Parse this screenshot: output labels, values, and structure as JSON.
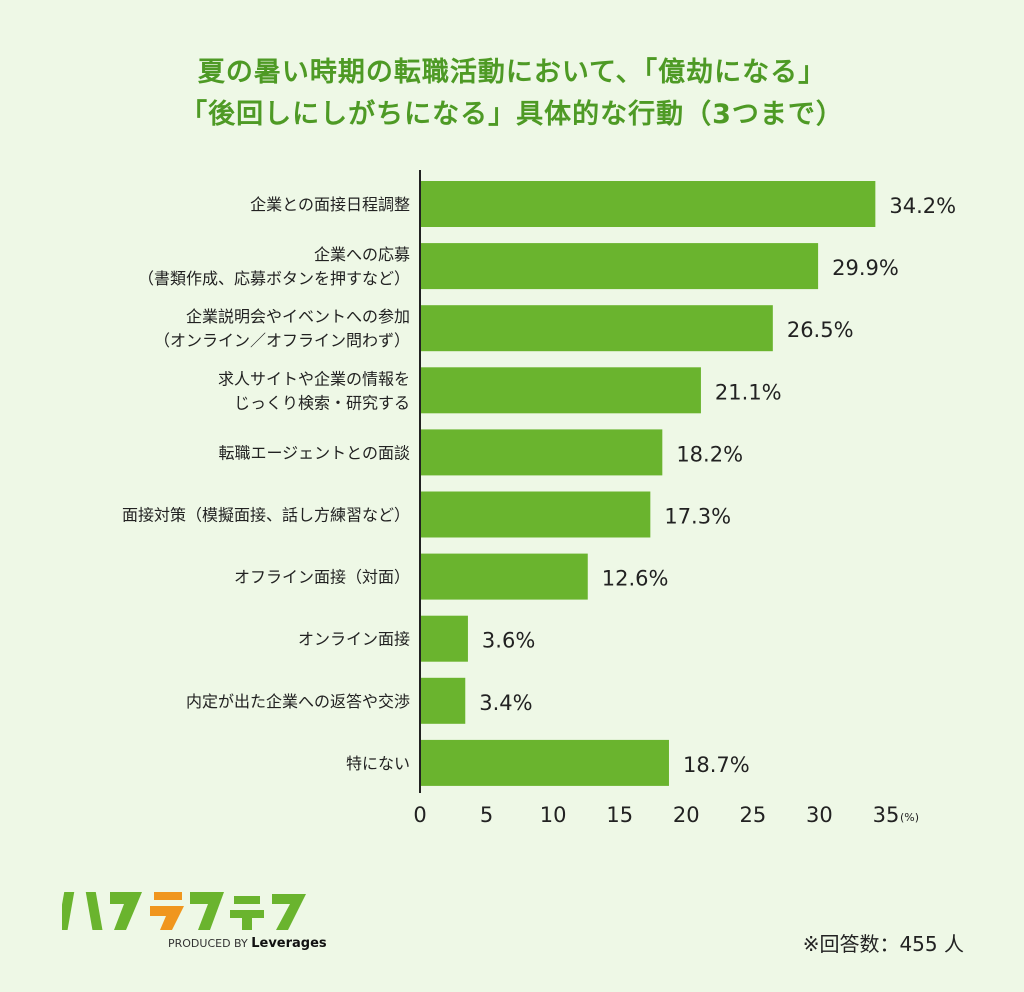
{
  "chart_data": {
    "type": "bar",
    "orientation": "horizontal",
    "title_lines": [
      "夏の暑い時期の転職活動において、「億劫になる」",
      "「後回しにしがちになる」具体的な行動（3つまで）"
    ],
    "categories": [
      [
        "企業との面接日程調整"
      ],
      [
        "企業への応募",
        "（書類作成、応募ボタンを押すなど）"
      ],
      [
        "企業説明会やイベントへの参加",
        "（オンライン／オフライン問わず）"
      ],
      [
        "求人サイトや企業の情報を",
        "じっくり検索・研究する"
      ],
      [
        "転職エージェントとの面談"
      ],
      [
        "面接対策（模擬面接、話し方練習など）"
      ],
      [
        "オフライン面接（対面）"
      ],
      [
        "オンライン面接"
      ],
      [
        "内定が出た企業への返答や交渉"
      ],
      [
        "特にない"
      ]
    ],
    "values": [
      34.2,
      29.9,
      26.5,
      21.1,
      18.2,
      17.3,
      12.6,
      3.6,
      3.4,
      18.7
    ],
    "data_labels": [
      "34.2%",
      "29.9%",
      "26.5%",
      "21.1%",
      "18.2%",
      "17.3%",
      "12.6%",
      "3.6%",
      "3.4%",
      "18.7%"
    ],
    "xlim": [
      0,
      35
    ],
    "xticks": [
      "0",
      "5",
      "10",
      "15",
      "20",
      "25",
      "30",
      "35"
    ],
    "xunit": "(%)",
    "grid": false,
    "colors": {
      "bar": "#6ab42e",
      "title": "#4e9a25",
      "background": "#eef8e6"
    }
  },
  "footer": {
    "logo": "ハタラクティブ",
    "produced_by": "PRODUCED BY",
    "brand": "Leverages",
    "note": "※回答数：455 人"
  }
}
